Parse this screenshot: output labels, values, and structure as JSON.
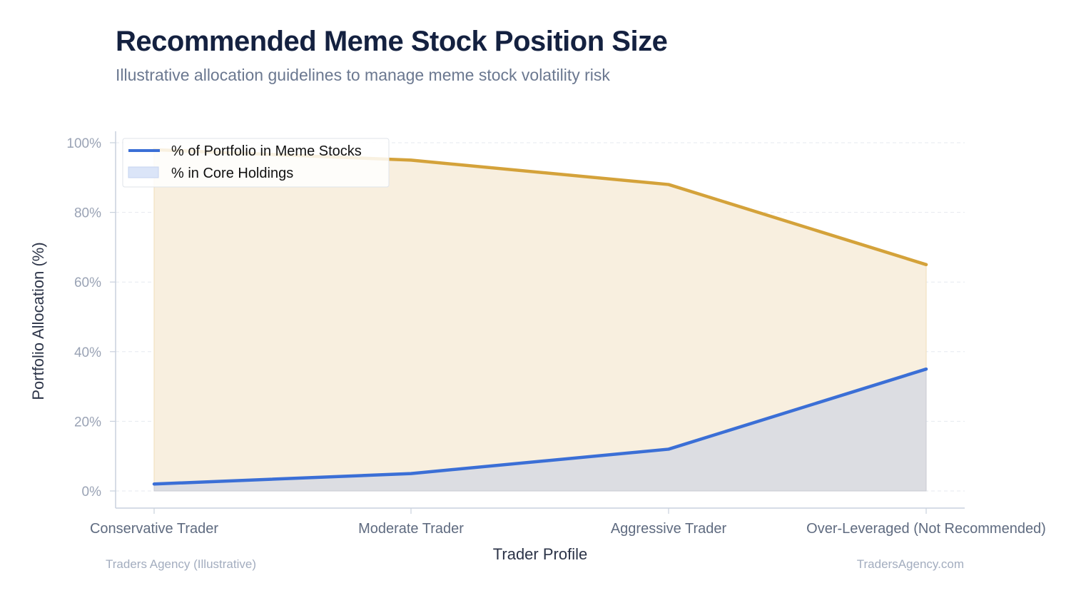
{
  "title": "Recommended Meme Stock Position Size",
  "subtitle": "Illustrative allocation guidelines to manage meme stock volatility risk",
  "footer": {
    "left": "Traders Agency (Illustrative)",
    "right": "TradersAgency.com"
  },
  "chart_data": {
    "type": "area",
    "categories": [
      "Conservative Trader",
      "Moderate Trader",
      "Aggressive Trader",
      "Over-Leveraged (Not Recommended)"
    ],
    "series": [
      {
        "name": "% of Portfolio in Meme Stocks",
        "kind": "line+area",
        "values": [
          2,
          5,
          12,
          35
        ],
        "color": "#3b6fd6",
        "fill": "#dcdde2"
      },
      {
        "name": "% in Core Holdings",
        "kind": "line+area",
        "values": [
          98,
          95,
          88,
          65
        ],
        "color": "#d4a23a",
        "fill": "#f8efdf"
      }
    ],
    "xlabel": "Trader Profile",
    "ylabel": "Portfolio Allocation (%)",
    "ylim": [
      0,
      100
    ],
    "yticks": [
      "0%",
      "20%",
      "40%",
      "60%",
      "80%",
      "100%"
    ],
    "grid": true,
    "legend": "top-left"
  }
}
